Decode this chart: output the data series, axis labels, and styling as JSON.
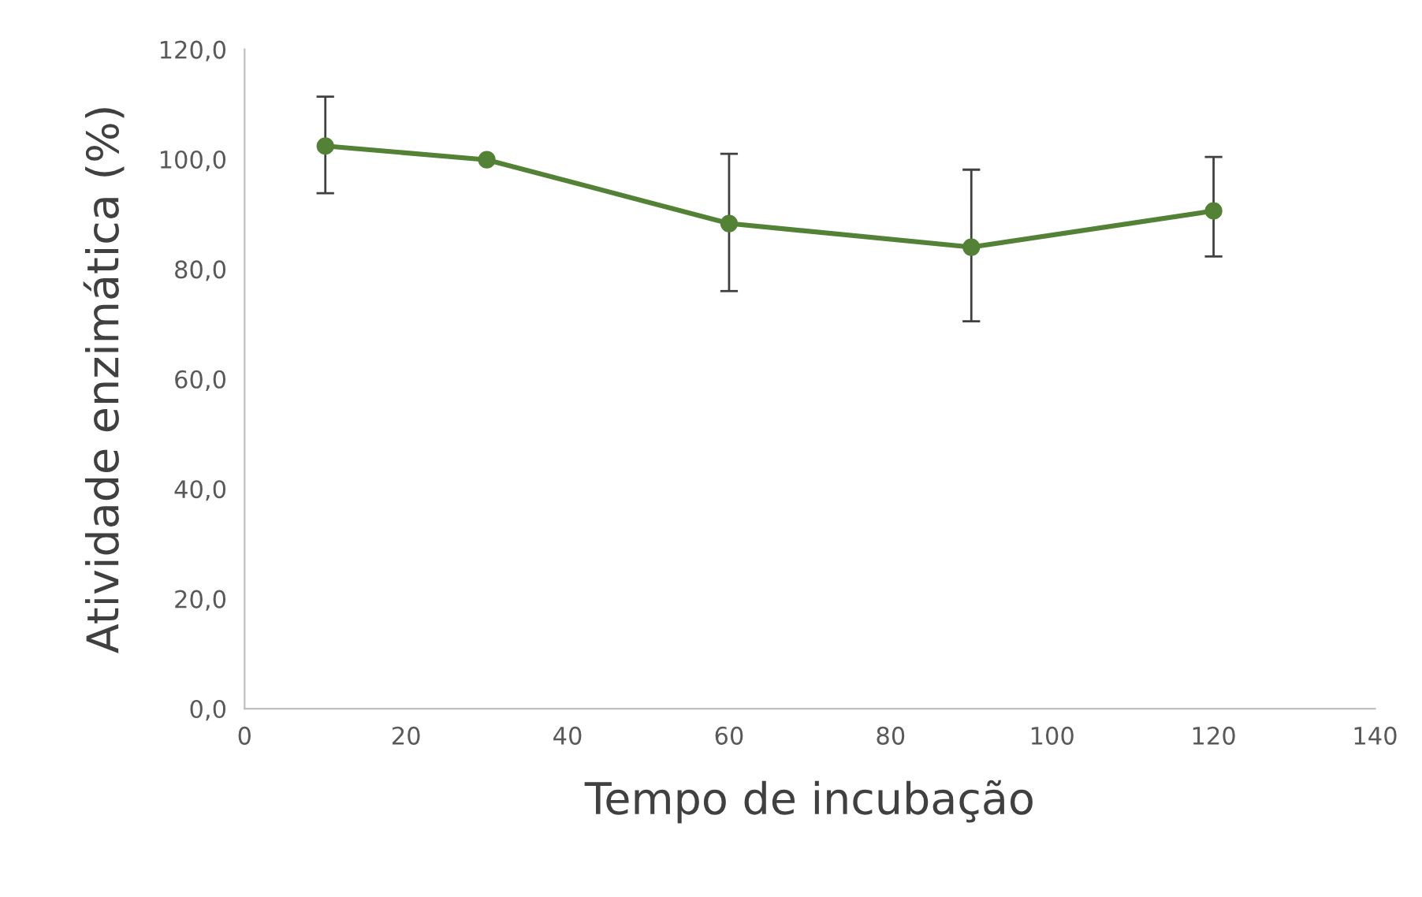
{
  "chart_data": {
    "type": "line",
    "xlabel": "Tempo de incubação",
    "ylabel": "Atividade enzimática (%)",
    "x": [
      10,
      30,
      60,
      90,
      120
    ],
    "series": [
      {
        "color": "#538135",
        "values": [
          102.4,
          99.9,
          88.3,
          84.0,
          90.6
        ],
        "errors": [
          [
            93.8,
            111.4
          ],
          null,
          [
            76.0,
            101.0
          ],
          [
            70.5,
            98.1
          ],
          [
            82.3,
            100.4
          ]
        ]
      }
    ],
    "xlim": [
      0,
      140
    ],
    "xticks": [
      0,
      20,
      40,
      60,
      80,
      100,
      120,
      140
    ],
    "ylim": [
      0,
      120
    ],
    "yticks": [
      {
        "value": 0,
        "label": "0,0"
      },
      {
        "value": 20,
        "label": "20,0"
      },
      {
        "value": 40,
        "label": "40,0"
      },
      {
        "value": 60,
        "label": "60,0"
      },
      {
        "value": 80,
        "label": "80,0"
      },
      {
        "value": 100,
        "label": "100,0"
      },
      {
        "value": 120,
        "label": "120,0"
      }
    ],
    "marker": "circle",
    "line_style": "solid",
    "grid": false,
    "legend": false
  }
}
